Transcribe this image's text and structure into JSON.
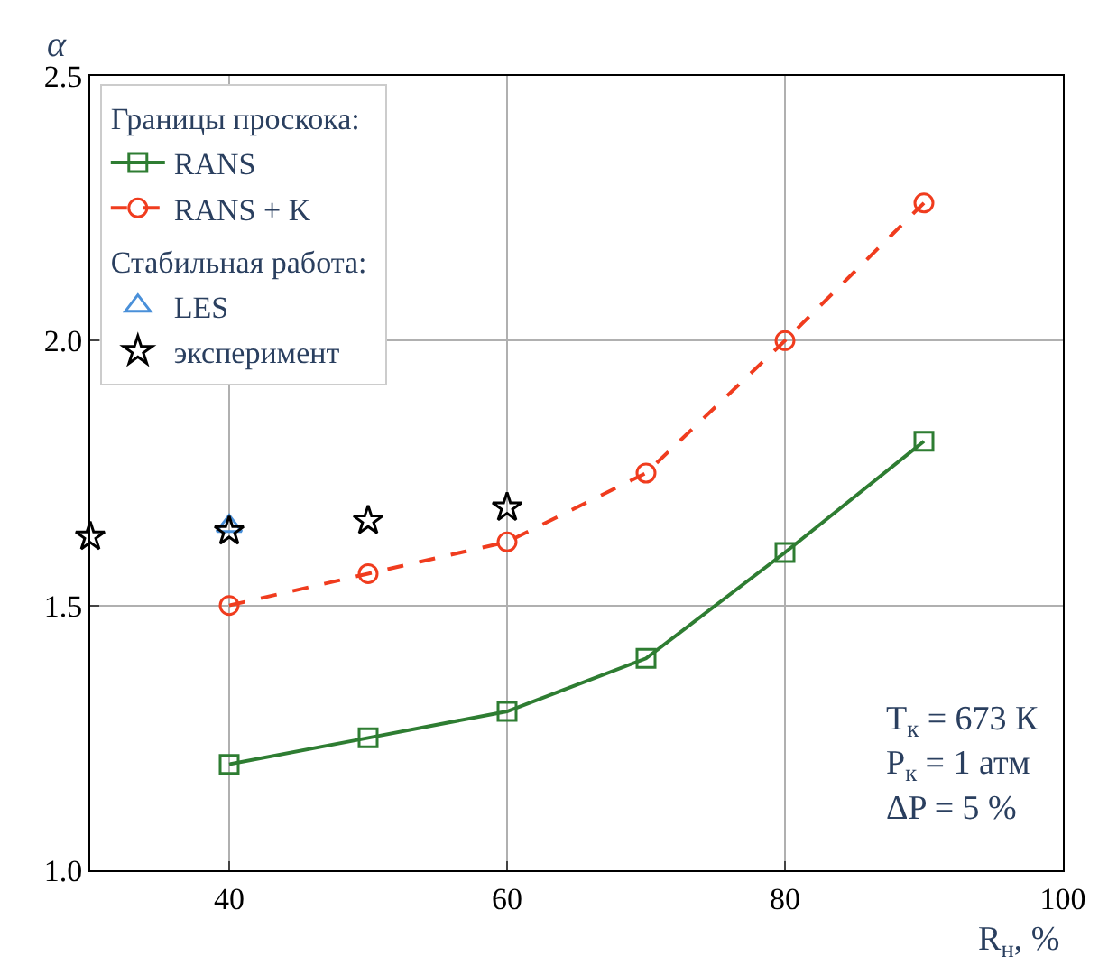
{
  "chart_data": {
    "type": "line",
    "xlabel": "R$_{н}$, %",
    "ylabel": "α",
    "xlim": [
      30,
      100
    ],
    "xticks": [
      40,
      60,
      80,
      100
    ],
    "ylim": [
      1.0,
      2.5
    ],
    "yticks": [
      {
        "value": 1.0,
        "label": "1.0"
      },
      {
        "value": 1.5,
        "label": "1.5"
      },
      {
        "value": 2.0,
        "label": "2.0"
      },
      {
        "value": 2.5,
        "label": "2.5"
      }
    ],
    "grid": true,
    "legend": "top left",
    "series": [
      {
        "name": "RANS",
        "color": "#2e7d32",
        "marker": "square",
        "line_style": "solid",
        "x": [
          40,
          50,
          60,
          70,
          80,
          90
        ],
        "values": [
          1.2,
          1.25,
          1.3,
          1.4,
          1.6,
          1.81
        ]
      },
      {
        "name": "RANS + K",
        "color": "#f03c1e",
        "marker": "circle",
        "line_style": "dashed",
        "x": [
          40,
          50,
          60,
          70,
          80,
          90
        ],
        "values": [
          1.5,
          1.56,
          1.62,
          1.75,
          2.0,
          2.26
        ]
      },
      {
        "name": "LES",
        "type": "scatter",
        "color": "#4a90d9",
        "marker": "triangle",
        "x": [
          40
        ],
        "values": [
          1.65
        ]
      },
      {
        "name": "эксперимент",
        "type": "scatter",
        "color": "#000000",
        "marker": "star",
        "x": [
          30,
          40,
          50,
          60
        ],
        "values": [
          1.63,
          1.64,
          1.66,
          1.685
        ]
      }
    ],
    "annotations": [
      "Границы проскока:",
      "Стабильная работа:",
      "T$_{к}$ = 673 К",
      "P$_{к}$ = 1 атм",
      "ΔP = 5 %"
    ]
  }
}
